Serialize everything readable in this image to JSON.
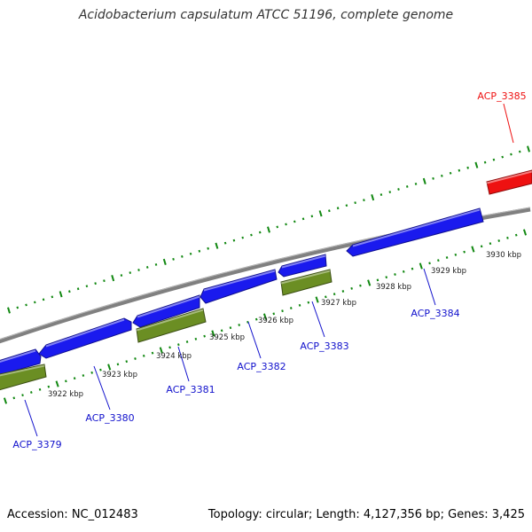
{
  "title": "Acidobacterium capsulatum ATCC 51196, complete genome",
  "footer": {
    "accession": "Accession: NC_012483",
    "summary": "Topology: circular; Length: 4,127,356 bp; Genes: 3,425"
  },
  "colors": {
    "forward_gene": "#1a1aee",
    "reverse_gene": "#6b8e23",
    "highlight_gene": "#ee1111",
    "backbone": "#808080",
    "ticks": "#118811",
    "label_default": "#1111cc",
    "label_highlight": "#ee1111"
  },
  "scale": {
    "unit": "kbp",
    "labels": [
      "3922 kbp",
      "3923 kbp",
      "3924 kbp",
      "3925 kbp",
      "3926 kbp",
      "3927 kbp",
      "3928 kbp",
      "3929 kbp",
      "3930 kbp"
    ]
  },
  "genes": [
    {
      "label": "ACP_3379",
      "strand": "reverse",
      "color_key": "reverse_gene",
      "label_color": "label_default"
    },
    {
      "label": "ACP_3380",
      "strand": "forward",
      "color_key": "forward_gene",
      "label_color": "label_default"
    },
    {
      "label": "ACP_3381",
      "strand": "reverse",
      "color_key": "reverse_gene",
      "label_color": "label_default"
    },
    {
      "label": "ACP_3382",
      "strand": "forward",
      "color_key": "forward_gene",
      "label_color": "label_default"
    },
    {
      "label": "ACP_3383",
      "strand": "reverse",
      "color_key": "reverse_gene",
      "label_color": "label_default"
    },
    {
      "label": "ACP_3384",
      "strand": "forward",
      "color_key": "forward_gene",
      "label_color": "label_default"
    },
    {
      "label": "ACP_3385",
      "strand": "forward",
      "color_key": "highlight_gene",
      "label_color": "label_highlight"
    }
  ]
}
